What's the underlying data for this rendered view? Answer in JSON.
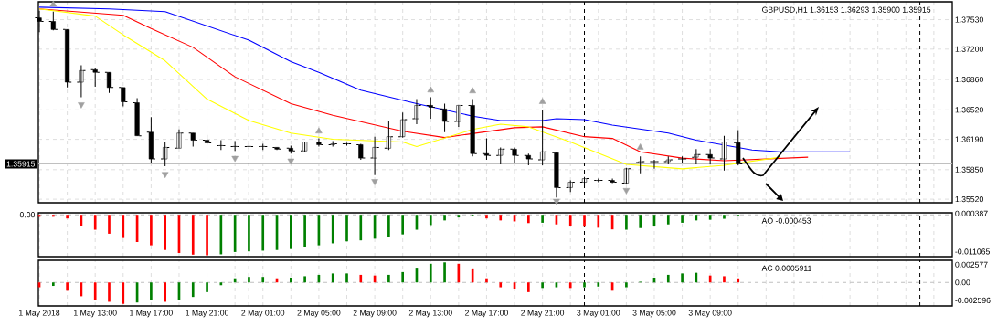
{
  "chart_data": [
    {
      "type": "candlestick",
      "title": "GBPUSD,H1 1.36153 1.36293 1.35900 1.35915",
      "color": "#000000",
      "x": [
        "2018-05-01T09:00",
        "2018-05-01T10:00",
        "2018-05-01T11:00",
        "2018-05-01T12:00",
        "2018-05-01T13:00",
        "2018-05-01T14:00",
        "2018-05-01T15:00",
        "2018-05-01T16:00",
        "2018-05-01T17:00",
        "2018-05-01T18:00",
        "2018-05-01T19:00",
        "2018-05-01T20:00",
        "2018-05-01T21:00",
        "2018-05-01T22:00",
        "2018-05-01T23:00",
        "2018-05-02T00:00",
        "2018-05-02T01:00",
        "2018-05-02T02:00",
        "2018-05-02T03:00",
        "2018-05-02T04:00",
        "2018-05-02T05:00",
        "2018-05-02T06:00",
        "2018-05-02T07:00",
        "2018-05-02T08:00",
        "2018-05-02T09:00",
        "2018-05-02T10:00",
        "2018-05-02T11:00",
        "2018-05-02T12:00",
        "2018-05-02T13:00",
        "2018-05-02T14:00",
        "2018-05-02T15:00",
        "2018-05-02T16:00",
        "2018-05-02T17:00",
        "2018-05-02T18:00",
        "2018-05-02T19:00",
        "2018-05-02T20:00",
        "2018-05-02T21:00",
        "2018-05-02T22:00",
        "2018-05-02T23:00",
        "2018-05-03T00:00",
        "2018-05-03T01:00",
        "2018-05-03T02:00",
        "2018-05-03T03:00",
        "2018-05-03T04:00",
        "2018-05-03T05:00",
        "2018-05-03T06:00",
        "2018-05-03T07:00",
        "2018-05-03T08:00",
        "2018-05-03T09:00",
        "2018-05-03T10:00",
        "2018-05-03T11:00"
      ],
      "ohlc": [
        [
          1.3755,
          1.3763,
          1.3739,
          1.3751
        ],
        [
          1.3751,
          1.3762,
          1.3741,
          1.3742
        ],
        [
          1.3742,
          1.3742,
          1.3677,
          1.3683
        ],
        [
          1.3683,
          1.3702,
          1.3666,
          1.3696
        ],
        [
          1.3697,
          1.3699,
          1.3678,
          1.3694
        ],
        [
          1.3694,
          1.3694,
          1.3671,
          1.3677
        ],
        [
          1.3677,
          1.3677,
          1.3656,
          1.3661
        ],
        [
          1.366,
          1.3665,
          1.3623,
          1.3623
        ],
        [
          1.3627,
          1.3644,
          1.3593,
          1.3597
        ],
        [
          1.3597,
          1.3616,
          1.3589,
          1.361
        ],
        [
          1.3609,
          1.363,
          1.3609,
          1.3626
        ],
        [
          1.3626,
          1.3626,
          1.3611,
          1.3618
        ],
        [
          1.3618,
          1.3624,
          1.3613,
          1.3615
        ],
        [
          1.3612,
          1.3618,
          1.3607,
          1.3612
        ],
        [
          1.3611,
          1.3617,
          1.3606,
          1.3611
        ],
        [
          1.3611,
          1.3614,
          1.3608,
          1.3611
        ],
        [
          1.3611,
          1.3614,
          1.3607,
          1.3611
        ],
        [
          1.361,
          1.361,
          1.3607,
          1.3608
        ],
        [
          1.3609,
          1.3612,
          1.3603,
          1.3606
        ],
        [
          1.3606,
          1.3616,
          1.3605,
          1.3616
        ],
        [
          1.3616,
          1.362,
          1.3611,
          1.3613
        ],
        [
          1.3613,
          1.3617,
          1.3611,
          1.3614
        ],
        [
          1.3614,
          1.3615,
          1.3612,
          1.3614
        ],
        [
          1.3613,
          1.3614,
          1.3596,
          1.3598
        ],
        [
          1.3598,
          1.3622,
          1.3579,
          1.361
        ],
        [
          1.3609,
          1.3639,
          1.3607,
          1.3622
        ],
        [
          1.3622,
          1.3649,
          1.3621,
          1.3641
        ],
        [
          1.3642,
          1.3664,
          1.3636,
          1.3657
        ],
        [
          1.3657,
          1.3666,
          1.3642,
          1.3655
        ],
        [
          1.3653,
          1.3659,
          1.3627,
          1.3639
        ],
        [
          1.3639,
          1.3657,
          1.3633,
          1.3657
        ],
        [
          1.3657,
          1.3664,
          1.36,
          1.3603
        ],
        [
          1.3603,
          1.362,
          1.3596,
          1.3601
        ],
        [
          1.3601,
          1.361,
          1.3591,
          1.3608
        ],
        [
          1.3608,
          1.361,
          1.3593,
          1.3601
        ],
        [
          1.3601,
          1.3603,
          1.359,
          1.3597
        ],
        [
          1.3596,
          1.3652,
          1.359,
          1.3605
        ],
        [
          1.3604,
          1.3605,
          1.3554,
          1.3565
        ],
        [
          1.3565,
          1.3573,
          1.356,
          1.3571
        ],
        [
          1.3571,
          1.3577,
          1.3569,
          1.3575
        ],
        [
          1.3573,
          1.3575,
          1.3571,
          1.3573
        ],
        [
          1.3573,
          1.3575,
          1.357,
          1.3571
        ],
        [
          1.357,
          1.3587,
          1.3569,
          1.3586
        ],
        [
          1.3593,
          1.36,
          1.3581,
          1.3594
        ],
        [
          1.3594,
          1.3596,
          1.3586,
          1.3594
        ],
        [
          1.3594,
          1.36,
          1.3591,
          1.3596
        ],
        [
          1.3597,
          1.36,
          1.3593,
          1.3597
        ],
        [
          1.3599,
          1.3608,
          1.3591,
          1.3602
        ],
        [
          1.3602,
          1.3608,
          1.3591,
          1.3598
        ],
        [
          1.3597,
          1.3623,
          1.3584,
          1.3616
        ],
        [
          1.36153,
          1.36293,
          1.359,
          1.35915
        ]
      ],
      "series": [
        {
          "type": "line",
          "color": "#0000ff",
          "x": [
            "2018-05-01T09:00",
            "2018-05-01T14:00",
            "2018-05-01T18:00",
            "2018-05-02T00:00",
            "2018-05-02T03:00",
            "2018-05-02T05:00",
            "2018-05-02T08:00",
            "2018-05-02T12:00",
            "2018-05-02T16:00",
            "2018-05-02T18:00",
            "2018-05-02T21:00",
            "2018-05-02T22:00",
            "2018-05-03T00:00",
            "2018-05-03T02:00",
            "2018-05-03T06:00",
            "2018-05-03T08:00",
            "2018-05-03T12:00",
            "2018-05-03T14:00",
            "2018-05-03T19:00"
          ],
          "values": [
            1.3767,
            1.3765,
            1.3762,
            1.373,
            1.3706,
            1.3694,
            1.3674,
            1.3659,
            1.3645,
            1.364,
            1.364,
            1.3642,
            1.3641,
            1.3635,
            1.3626,
            1.3618,
            1.3607,
            1.3605,
            1.3605
          ]
        },
        {
          "type": "line",
          "color": "#ff0000",
          "x": [
            "2018-05-01T09:00",
            "2018-05-01T15:00",
            "2018-05-01T17:00",
            "2018-05-01T20:00",
            "2018-05-01T23:00",
            "2018-05-02T03:00",
            "2018-05-02T06:00",
            "2018-05-02T11:00",
            "2018-05-02T14:00",
            "2018-05-02T19:00",
            "2018-05-02T21:00",
            "2018-05-03T00:00",
            "2018-05-03T02:00",
            "2018-05-03T04:00",
            "2018-05-03T07:00",
            "2018-05-03T10:00",
            "2018-05-03T16:00"
          ],
          "values": [
            1.3765,
            1.3758,
            1.3743,
            1.3722,
            1.3689,
            1.3659,
            1.3646,
            1.3628,
            1.3621,
            1.3632,
            1.3633,
            1.3622,
            1.362,
            1.3605,
            1.3598,
            1.3595,
            1.3599
          ]
        },
        {
          "type": "line",
          "color": "#ffff00",
          "x": [
            "2018-05-01T09:00",
            "2018-05-01T13:00",
            "2018-05-01T15:00",
            "2018-05-01T18:00",
            "2018-05-01T21:00",
            "2018-05-02T00:00",
            "2018-05-02T03:00",
            "2018-05-02T06:00",
            "2018-05-02T11:00",
            "2018-05-02T12:00",
            "2018-05-02T16:00",
            "2018-05-02T18:00",
            "2018-05-02T20:00",
            "2018-05-02T23:00",
            "2018-05-03T03:00",
            "2018-05-03T07:00",
            "2018-05-03T10:00",
            "2018-05-03T14:00"
          ],
          "values": [
            1.3765,
            1.3757,
            1.3736,
            1.3707,
            1.3664,
            1.364,
            1.3626,
            1.3619,
            1.3616,
            1.3611,
            1.363,
            1.3636,
            1.3633,
            1.3616,
            1.3591,
            1.3586,
            1.359,
            1.3599
          ]
        },
        {
          "type": "scatter",
          "color": "#a0a0a0",
          "marker": "triangle",
          "x": [
            "2018-05-01T10:00",
            "2018-05-02T05:00",
            "2018-05-02T13:00",
            "2018-05-02T16:00",
            "2018-05-02T21:00",
            "2018-05-03T04:00"
          ],
          "values": [
            1.377,
            1.3628,
            1.3674,
            1.3673,
            1.3661,
            1.361
          ]
        },
        {
          "type": "scatter",
          "color": "#a0a0a0",
          "marker": "triangle",
          "x": [
            "2018-05-01T12:00",
            "2018-05-01T18:00",
            "2018-05-01T23:00",
            "2018-05-02T03:00",
            "2018-05-02T09:00",
            "2018-05-02T22:00",
            "2018-05-03T03:00"
          ],
          "values": [
            1.3658,
            1.358,
            1.3598,
            1.3595,
            1.3572,
            1.355,
            1.3562
          ]
        }
      ],
      "xlim": [
        "2018-05-01T08:56",
        "2018-05-04T02:19"
      ],
      "ylim": [
        1.3548,
        1.3773
      ],
      "xticks": [
        "2018-05-01T09:00",
        "2018-05-01T11:00",
        "2018-05-01T13:00",
        "2018-05-01T15:00",
        "2018-05-01T17:00",
        "2018-05-01T19:00",
        "2018-05-01T21:00",
        "2018-05-01T23:00",
        "2018-05-02T01:00",
        "2018-05-02T03:00",
        "2018-05-02T05:00",
        "2018-05-02T07:00",
        "2018-05-02T09:00",
        "2018-05-02T11:00",
        "2018-05-02T13:00",
        "2018-05-02T15:00",
        "2018-05-02T17:00",
        "2018-05-02T19:00",
        "2018-05-02T21:00",
        "2018-05-02T23:00",
        "2018-05-03T01:00",
        "2018-05-03T03:00",
        "2018-05-03T05:00",
        "2018-05-03T07:00",
        "2018-05-03T09:00",
        "2018-05-03T11:00",
        "2018-05-03T13:00",
        "2018-05-03T15:00",
        "2018-05-03T17:00",
        "2018-05-03T19:00",
        "2018-05-03T21:00",
        "2018-05-03T23:00",
        "2018-05-04T01:00"
      ],
      "yticks": [
        {
          "value": 1.3753,
          "label": "1.37530"
        },
        {
          "value": 1.372,
          "label": "1.37200"
        },
        {
          "value": 1.3686,
          "label": "1.36860"
        },
        {
          "value": 1.3652,
          "label": "1.36520"
        },
        {
          "value": 1.3619,
          "label": "1.36190"
        },
        {
          "value": 1.3585,
          "label": "1.35850"
        },
        {
          "value": 1.3552,
          "label": "1.35520"
        }
      ],
      "grid": true,
      "tick_labels": "y",
      "ref_lines": [
        {
          "axis": "y",
          "value": 1.35915,
          "label": "1.35915",
          "color": "#c0c0c0"
        },
        {
          "axis": "x",
          "value": "2018-05-02T00:00",
          "color": "#000000",
          "line_style": "dashed"
        },
        {
          "axis": "x",
          "value": "2018-05-03T00:00",
          "color": "#000000",
          "line_style": "dashed"
        },
        {
          "axis": "x",
          "value": "2018-05-04T00:00",
          "color": "#000000",
          "line_style": "dashed"
        }
      ]
    },
    {
      "type": "bar",
      "title": "AO -0.000453",
      "x": [
        "2018-05-01T09:00",
        "2018-05-01T10:00",
        "2018-05-01T11:00",
        "2018-05-01T12:00",
        "2018-05-01T13:00",
        "2018-05-01T14:00",
        "2018-05-01T15:00",
        "2018-05-01T16:00",
        "2018-05-01T17:00",
        "2018-05-01T18:00",
        "2018-05-01T19:00",
        "2018-05-01T20:00",
        "2018-05-01T21:00",
        "2018-05-01T22:00",
        "2018-05-01T23:00",
        "2018-05-02T00:00",
        "2018-05-02T01:00",
        "2018-05-02T02:00",
        "2018-05-02T03:00",
        "2018-05-02T04:00",
        "2018-05-02T05:00",
        "2018-05-02T06:00",
        "2018-05-02T07:00",
        "2018-05-02T08:00",
        "2018-05-02T09:00",
        "2018-05-02T10:00",
        "2018-05-02T11:00",
        "2018-05-02T12:00",
        "2018-05-02T13:00",
        "2018-05-02T14:00",
        "2018-05-02T15:00",
        "2018-05-02T16:00",
        "2018-05-02T17:00",
        "2018-05-02T18:00",
        "2018-05-02T19:00",
        "2018-05-02T20:00",
        "2018-05-02T21:00",
        "2018-05-02T22:00",
        "2018-05-02T23:00",
        "2018-05-03T00:00",
        "2018-05-03T01:00",
        "2018-05-03T02:00",
        "2018-05-03T03:00",
        "2018-05-03T04:00",
        "2018-05-03T05:00",
        "2018-05-03T06:00",
        "2018-05-03T07:00",
        "2018-05-03T08:00",
        "2018-05-03T09:00",
        "2018-05-03T10:00",
        "2018-05-03T11:00"
      ],
      "values": [
        -0.0006,
        -0.0006,
        -0.0011,
        -0.0033,
        -0.0045,
        -0.0057,
        -0.007,
        -0.0082,
        -0.0092,
        -0.0106,
        -0.0115,
        -0.012,
        -0.0122,
        -0.0119,
        -0.0112,
        -0.011,
        -0.0108,
        -0.0106,
        -0.0103,
        -0.0098,
        -0.0092,
        -0.0086,
        -0.008,
        -0.0077,
        -0.0072,
        -0.0066,
        -0.0059,
        -0.0045,
        -0.0031,
        -0.0017,
        -0.0008,
        -0.0005,
        -0.0011,
        -0.0017,
        -0.002,
        -0.0025,
        -0.0024,
        -0.0029,
        -0.0033,
        -0.0036,
        -0.0039,
        -0.0044,
        -0.0045,
        -0.004,
        -0.0033,
        -0.0029,
        -0.0024,
        -0.0017,
        -0.0015,
        -0.0012,
        -0.000453
      ],
      "colors": [
        "#ff0000",
        "#ff0000",
        "#ff0000",
        "#ff0000",
        "#ff0000",
        "#ff0000",
        "#ff0000",
        "#ff0000",
        "#ff0000",
        "#ff0000",
        "#ff0000",
        "#ff0000",
        "#ff0000",
        "#008000",
        "#008000",
        "#008000",
        "#008000",
        "#008000",
        "#008000",
        "#008000",
        "#008000",
        "#008000",
        "#008000",
        "#008000",
        "#008000",
        "#008000",
        "#008000",
        "#008000",
        "#008000",
        "#008000",
        "#008000",
        "#008000",
        "#ff0000",
        "#ff0000",
        "#ff0000",
        "#ff0000",
        "#008000",
        "#ff0000",
        "#ff0000",
        "#ff0000",
        "#ff0000",
        "#ff0000",
        "#008000",
        "#008000",
        "#008000",
        "#008000",
        "#008000",
        "#008000",
        "#008000",
        "#008000",
        "#008000"
      ],
      "xlim": [
        "2018-05-01T08:56",
        "2018-05-04T02:19"
      ],
      "ylim": [
        -0.0126,
        0.0006
      ],
      "xticks": [
        "2018-05-01T09:00",
        "2018-05-01T11:00",
        "2018-05-01T13:00",
        "2018-05-01T15:00",
        "2018-05-01T17:00",
        "2018-05-01T19:00",
        "2018-05-01T21:00",
        "2018-05-01T23:00",
        "2018-05-02T01:00",
        "2018-05-02T03:00",
        "2018-05-02T05:00",
        "2018-05-02T07:00",
        "2018-05-02T09:00",
        "2018-05-02T11:00",
        "2018-05-02T13:00",
        "2018-05-02T15:00",
        "2018-05-02T17:00",
        "2018-05-02T19:00",
        "2018-05-02T21:00",
        "2018-05-02T23:00",
        "2018-05-03T01:00",
        "2018-05-03T03:00",
        "2018-05-03T05:00",
        "2018-05-03T07:00",
        "2018-05-03T09:00",
        "2018-05-03T11:00",
        "2018-05-03T13:00",
        "2018-05-03T15:00",
        "2018-05-03T17:00",
        "2018-05-03T19:00",
        "2018-05-03T21:00",
        "2018-05-03T23:00",
        "2018-05-04T01:00"
      ],
      "yticks": [
        0.000387,
        -0.011065
      ],
      "grid": "x",
      "tick_labels": "y",
      "ref_lines": [
        {
          "axis": "y",
          "value": 0,
          "label": "0.00",
          "color": "#c0c0c0",
          "line_style": "dashed"
        },
        {
          "axis": "x",
          "value": "2018-05-02T00:00",
          "color": "#000000",
          "line_style": "dashed"
        },
        {
          "axis": "x",
          "value": "2018-05-03T00:00",
          "color": "#000000",
          "line_style": "dashed"
        },
        {
          "axis": "x",
          "value": "2018-05-04T00:00",
          "color": "#000000",
          "line_style": "dashed"
        }
      ]
    },
    {
      "type": "bar",
      "title": "AC 0.0005911",
      "x": [
        "2018-05-01T09:00",
        "2018-05-01T10:00",
        "2018-05-01T11:00",
        "2018-05-01T12:00",
        "2018-05-01T13:00",
        "2018-05-01T14:00",
        "2018-05-01T15:00",
        "2018-05-01T16:00",
        "2018-05-01T17:00",
        "2018-05-01T18:00",
        "2018-05-01T19:00",
        "2018-05-01T20:00",
        "2018-05-01T21:00",
        "2018-05-01T22:00",
        "2018-05-01T23:00",
        "2018-05-02T00:00",
        "2018-05-02T01:00",
        "2018-05-02T02:00",
        "2018-05-02T03:00",
        "2018-05-02T04:00",
        "2018-05-02T05:00",
        "2018-05-02T06:00",
        "2018-05-02T07:00",
        "2018-05-02T08:00",
        "2018-05-02T09:00",
        "2018-05-02T10:00",
        "2018-05-02T11:00",
        "2018-05-02T12:00",
        "2018-05-02T13:00",
        "2018-05-02T14:00",
        "2018-05-02T15:00",
        "2018-05-02T16:00",
        "2018-05-02T17:00",
        "2018-05-02T18:00",
        "2018-05-02T19:00",
        "2018-05-02T20:00",
        "2018-05-02T21:00",
        "2018-05-02T22:00",
        "2018-05-02T23:00",
        "2018-05-03T00:00",
        "2018-05-03T01:00",
        "2018-05-03T02:00",
        "2018-05-03T03:00",
        "2018-05-03T04:00",
        "2018-05-03T05:00",
        "2018-05-03T06:00",
        "2018-05-03T07:00",
        "2018-05-03T08:00",
        "2018-05-03T09:00",
        "2018-05-03T10:00",
        "2018-05-03T11:00"
      ],
      "values": [
        -0.0007,
        -0.0005,
        -0.0012,
        -0.002,
        -0.0025,
        -0.0028,
        -0.0031,
        -0.0029,
        -0.0026,
        -0.0028,
        -0.0025,
        -0.0021,
        -0.0014,
        -0.0004,
        0.0006,
        0.0008,
        0.0008,
        0.0006,
        0.0007,
        0.0009,
        0.0011,
        0.0013,
        0.0013,
        0.0011,
        0.001,
        0.0011,
        0.0015,
        0.002,
        0.0027,
        0.0029,
        0.0027,
        0.0019,
        0.0006,
        -0.0007,
        -0.001,
        -0.0014,
        -0.0008,
        -0.0007,
        -0.0008,
        -0.0007,
        -0.0006,
        -0.0012,
        -0.0007,
        0.0001,
        0.0007,
        0.0011,
        0.0013,
        0.0014,
        0.001,
        0.0009,
        0.0005911
      ],
      "colors": [
        "#ff0000",
        "#008000",
        "#ff0000",
        "#ff0000",
        "#ff0000",
        "#ff0000",
        "#ff0000",
        "#008000",
        "#008000",
        "#ff0000",
        "#008000",
        "#008000",
        "#008000",
        "#008000",
        "#008000",
        "#008000",
        "#008000",
        "#ff0000",
        "#008000",
        "#008000",
        "#008000",
        "#008000",
        "#008000",
        "#ff0000",
        "#ff0000",
        "#008000",
        "#008000",
        "#008000",
        "#008000",
        "#008000",
        "#ff0000",
        "#ff0000",
        "#ff0000",
        "#ff0000",
        "#ff0000",
        "#ff0000",
        "#008000",
        "#008000",
        "#ff0000",
        "#008000",
        "#008000",
        "#ff0000",
        "#008000",
        "#008000",
        "#008000",
        "#008000",
        "#008000",
        "#008000",
        "#ff0000",
        "#ff0000",
        "#ff0000"
      ],
      "xlim": [
        "2018-05-01T08:56",
        "2018-05-04T02:19"
      ],
      "ylim": [
        -0.0034,
        0.0032
      ],
      "xticks": [
        {
          "value": "2018-05-01T09:00",
          "label": "1 May 2018"
        },
        {
          "value": "2018-05-01T11:00",
          "label": null
        },
        {
          "value": "2018-05-01T13:00",
          "label": "1 May 13:00"
        },
        {
          "value": "2018-05-01T15:00",
          "label": null
        },
        {
          "value": "2018-05-01T17:00",
          "label": "1 May 17:00"
        },
        {
          "value": "2018-05-01T19:00",
          "label": null
        },
        {
          "value": "2018-05-01T21:00",
          "label": "1 May 21:00"
        },
        {
          "value": "2018-05-01T23:00",
          "label": null
        },
        {
          "value": "2018-05-02T01:00",
          "label": "2 May 01:00"
        },
        {
          "value": "2018-05-02T03:00",
          "label": null
        },
        {
          "value": "2018-05-02T05:00",
          "label": "2 May 05:00"
        },
        {
          "value": "2018-05-02T07:00",
          "label": null
        },
        {
          "value": "2018-05-02T09:00",
          "label": "2 May 09:00"
        },
        {
          "value": "2018-05-02T11:00",
          "label": null
        },
        {
          "value": "2018-05-02T13:00",
          "label": "2 May 13:00"
        },
        {
          "value": "2018-05-02T15:00",
          "label": null
        },
        {
          "value": "2018-05-02T17:00",
          "label": "2 May 17:00"
        },
        {
          "value": "2018-05-02T19:00",
          "label": null
        },
        {
          "value": "2018-05-02T21:00",
          "label": "2 May 21:00"
        },
        {
          "value": "2018-05-02T23:00",
          "label": null
        },
        {
          "value": "2018-05-03T01:00",
          "label": "3 May 01:00"
        },
        {
          "value": "2018-05-03T03:00",
          "label": null
        },
        {
          "value": "2018-05-03T05:00",
          "label": "3 May 05:00"
        },
        {
          "value": "2018-05-03T07:00",
          "label": null
        },
        {
          "value": "2018-05-03T09:00",
          "label": "3 May 09:00"
        },
        {
          "value": "2018-05-03T11:00",
          "label": null
        },
        {
          "value": "2018-05-03T13:00",
          "label": null
        },
        {
          "value": "2018-05-03T15:00",
          "label": null
        },
        {
          "value": "2018-05-03T17:00",
          "label": null
        },
        {
          "value": "2018-05-03T19:00",
          "label": null
        },
        {
          "value": "2018-05-03T21:00",
          "label": null
        },
        {
          "value": "2018-05-03T23:00",
          "label": null
        },
        {
          "value": "2018-05-04T01:00",
          "label": null
        }
      ],
      "yticks": [
        0.002577,
        {
          "value": 0,
          "label": "0.00"
        },
        -0.002596
      ],
      "grid": "x",
      "ref_lines": [
        {
          "axis": "y",
          "value": 0,
          "color": "#c0c0c0",
          "line_style": "dashed"
        },
        {
          "axis": "x",
          "value": "2018-05-02T00:00",
          "color": "#000000",
          "line_style": "dashed"
        },
        {
          "axis": "x",
          "value": "2018-05-03T00:00",
          "color": "#000000",
          "line_style": "dashed"
        },
        {
          "axis": "x",
          "value": "2018-05-04T00:00",
          "color": "#000000",
          "line_style": "dashed"
        }
      ]
    }
  ]
}
